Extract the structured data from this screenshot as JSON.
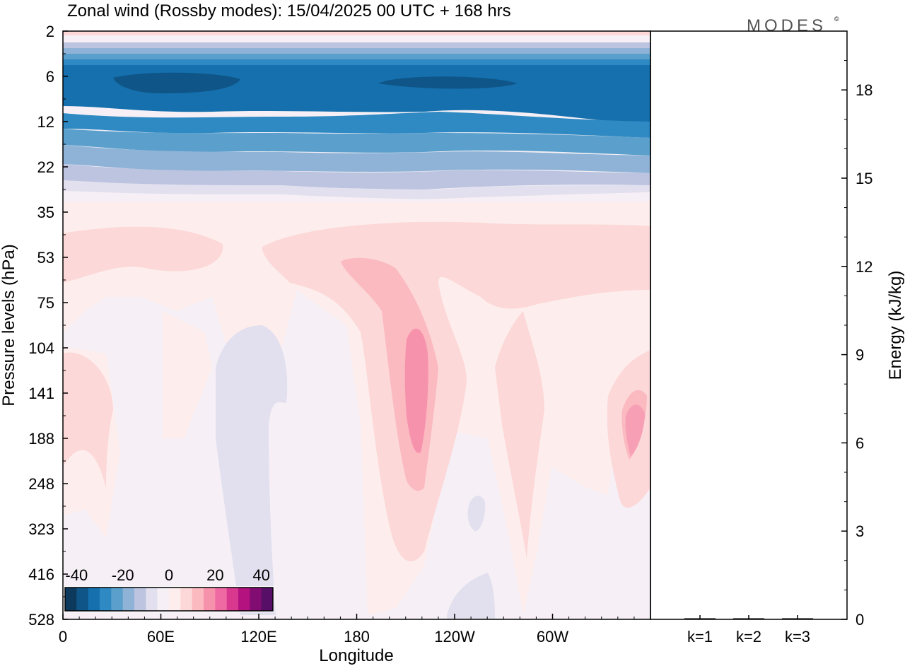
{
  "title": "Zonal wind (Rossby modes):  15/04/2025  00 UTC  + 168 hrs",
  "logo": "MODES",
  "logo_mark": "©",
  "chart_data": [
    {
      "type": "heatmap",
      "xlabel": "Longitude",
      "ylabel": "Pressure levels (hPa)",
      "x_ticks": [
        "0",
        "60E",
        "120E",
        "180",
        "120W",
        "60W"
      ],
      "y_ticks": [
        "2",
        "6",
        "12",
        "22",
        "35",
        "53",
        "75",
        "104",
        "141",
        "188",
        "248",
        "323",
        "416",
        "528"
      ],
      "colorbar": {
        "tick_labels": [
          "-40",
          "-20",
          "0",
          "20",
          "40"
        ],
        "ticks": [
          -40,
          -20,
          0,
          20,
          40
        ],
        "levels": [
          -45,
          -40,
          -35,
          -30,
          -25,
          -20,
          -15,
          -10,
          -5,
          0,
          5,
          10,
          15,
          20,
          25,
          30,
          35,
          40,
          45
        ],
        "colors": [
          "#0d3a5c",
          "#0f5587",
          "#1570ad",
          "#2f89c2",
          "#5ba0cc",
          "#8fb3d6",
          "#bcc4e0",
          "#e2e0ee",
          "#f6f0f6",
          "#fdeeed",
          "#fcd8d8",
          "#fbb9c0",
          "#f792ad",
          "#ef6aa2",
          "#d8398f",
          "#b3127f",
          "#820d72",
          "#560e66"
        ]
      },
      "field_description_levels": {
        "2": "weak positive (~0 to 5)",
        "6": "strong easterlies, about -35 to -45",
        "12": "easterlies, about -20 to -30",
        "22": "weak easterlies, about -5 to -15",
        "35-75": "weak westerlies, about 0 to 10",
        "104-248 near 160W": "westerly maximum, about 20",
        "416-528": "near zero"
      }
    },
    {
      "type": "bar",
      "categories": [
        "k=1",
        "k=2",
        "k=3"
      ],
      "values": [
        0.0,
        0.0,
        0.0
      ],
      "ylabel": "Energy (kJ/kg)",
      "y_ticks": [
        "0",
        "3",
        "6",
        "9",
        "12",
        "15",
        "18"
      ],
      "ylim": [
        0,
        20
      ]
    }
  ]
}
